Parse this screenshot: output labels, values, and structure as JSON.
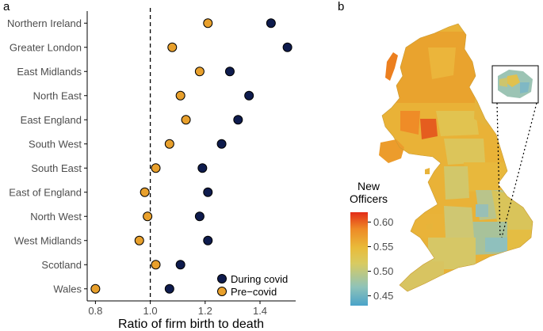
{
  "panels": {
    "a": "a",
    "b": "b"
  },
  "chart_data": [
    {
      "type": "scatter",
      "panel": "a",
      "title": "",
      "xlabel": "Ratio of firm birth to death",
      "ylabel": "",
      "xlim": [
        0.77,
        1.53
      ],
      "xticks": [
        0.8,
        1.0,
        1.2,
        1.4
      ],
      "xtick_labels": [
        "0.8",
        "1.0",
        "1.2",
        "1.4"
      ],
      "reference_line": 1.0,
      "categories": [
        "Northern Ireland",
        "Greater London",
        "East Midlands",
        "North East",
        "East England",
        "South West",
        "South East",
        "East of England",
        "North West",
        "West Midlands",
        "Scotland",
        "Wales"
      ],
      "series": [
        {
          "name": "During covid",
          "color": "#0e1b4d",
          "values": [
            1.44,
            1.5,
            1.29,
            1.36,
            1.32,
            1.26,
            1.19,
            1.21,
            1.18,
            1.21,
            1.11,
            1.07
          ]
        },
        {
          "name": "Pre−covid",
          "color": "#e8a02c",
          "values": [
            1.21,
            1.08,
            1.18,
            1.11,
            1.13,
            1.07,
            1.02,
            0.98,
            0.99,
            0.96,
            1.02,
            0.8
          ]
        }
      ],
      "legend_position": "bottom-right"
    },
    {
      "type": "heatmap",
      "panel": "b",
      "title": "New Officers",
      "colorbar": {
        "ticks": [
          0.45,
          0.5,
          0.55,
          0.6
        ],
        "tick_labels": [
          "0.45",
          "0.50",
          "0.55",
          "0.60"
        ],
        "range": [
          0.43,
          0.62
        ],
        "colors": [
          "#4aa3c9",
          "#8fc3b8",
          "#c8c87a",
          "#e6c343",
          "#ef9d2c",
          "#e5301a"
        ]
      },
      "inset": "Greater London zoom"
    }
  ],
  "colors": {
    "during": "#0e1b4d",
    "pre": "#e8a02c",
    "axis": "#000000",
    "label": "#4d4d4d"
  }
}
